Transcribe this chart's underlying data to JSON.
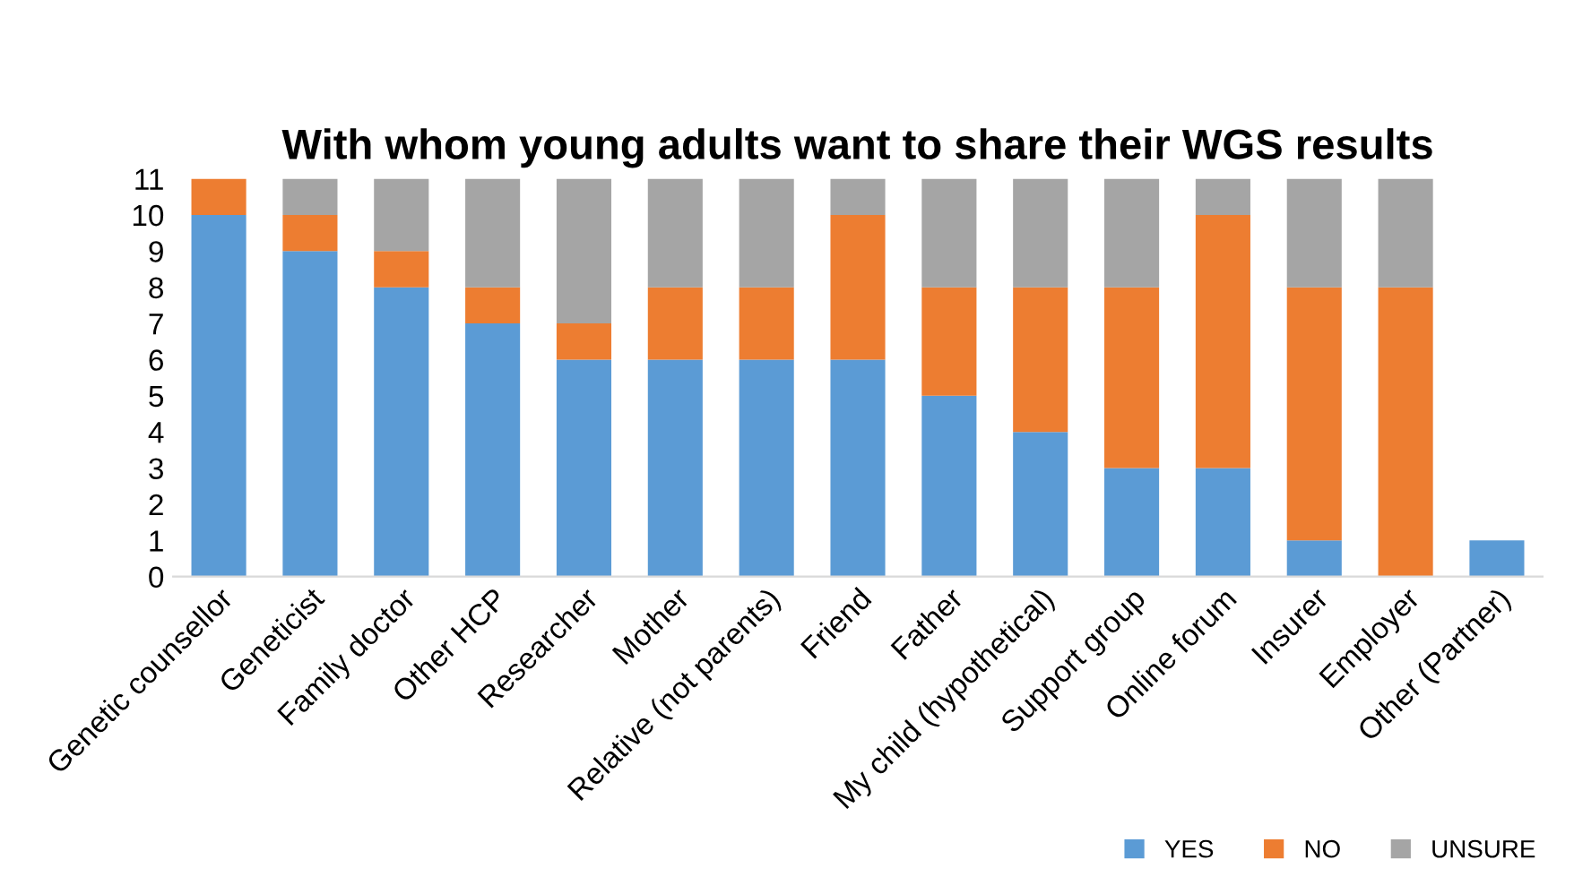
{
  "chart_data": {
    "type": "bar",
    "title": "With whom young adults want to share their WGS results",
    "stacked": true,
    "categories": [
      "Genetic counsellor",
      "Geneticist",
      "Family doctor",
      "Other HCP",
      "Researcher",
      "Mother",
      "Relative (not parents)",
      "Friend",
      "Father",
      "My child (hypothetical)",
      "Support group",
      "Online forum",
      "Insurer",
      "Employer",
      "Other (Partner)"
    ],
    "series": [
      {
        "name": "YES",
        "color": "#5b9bd5",
        "values": [
          10,
          9,
          8,
          7,
          6,
          6,
          6,
          6,
          5,
          4,
          3,
          3,
          1,
          0,
          1
        ]
      },
      {
        "name": "NO",
        "color": "#ed7d31",
        "values": [
          1,
          1,
          1,
          1,
          1,
          2,
          2,
          4,
          3,
          4,
          5,
          7,
          7,
          8,
          0
        ]
      },
      {
        "name": "UNSURE",
        "color": "#a5a5a5",
        "values": [
          0,
          1,
          2,
          3,
          4,
          3,
          3,
          1,
          3,
          3,
          3,
          1,
          3,
          3,
          0
        ]
      }
    ],
    "ylim": [
      0,
      11
    ],
    "yticks": [
      0,
      1,
      2,
      3,
      4,
      5,
      6,
      7,
      8,
      9,
      10,
      11
    ],
    "grid": false,
    "legend": "bottom right"
  }
}
